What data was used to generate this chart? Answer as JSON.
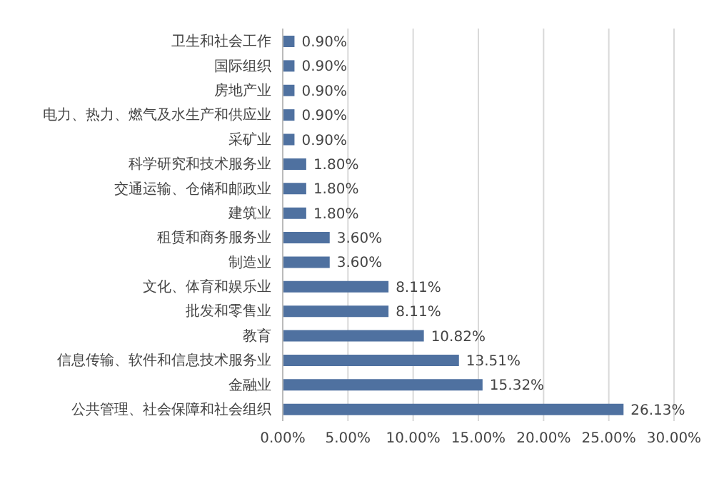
{
  "chart_data": {
    "type": "bar",
    "orientation": "horizontal",
    "categories": [
      "卫生和社会工作",
      "国际组织",
      "房地产业",
      "电力、热力、燃气及水生产和供应业",
      "采矿业",
      "科学研究和技术服务业",
      "交通运输、仓储和邮政业",
      "建筑业",
      "租赁和商务服务业",
      "制造业",
      "文化、体育和娱乐业",
      "批发和零售业",
      "教育",
      "信息传输、软件和信息技术服务业",
      "金融业",
      "公共管理、社会保障和社会组织"
    ],
    "values": [
      0.9,
      0.9,
      0.9,
      0.9,
      0.9,
      1.8,
      1.8,
      1.8,
      3.6,
      3.6,
      8.11,
      8.11,
      10.82,
      13.51,
      15.32,
      26.13
    ],
    "value_labels": [
      "0.90%",
      "0.90%",
      "0.90%",
      "0.90%",
      "0.90%",
      "1.80%",
      "1.80%",
      "1.80%",
      "3.60%",
      "3.60%",
      "8.11%",
      "8.11%",
      "10.82%",
      "13.51%",
      "15.32%",
      "26.13%"
    ],
    "color": "#4f71a0",
    "xlim": [
      0,
      30
    ],
    "xticks": [
      {
        "value": 0,
        "label": "0.00%"
      },
      {
        "value": 5,
        "label": "5.00%"
      },
      {
        "value": 10,
        "label": "10.00%"
      },
      {
        "value": 15,
        "label": "15.00%"
      },
      {
        "value": 20,
        "label": "20.00%"
      },
      {
        "value": 25,
        "label": "25.00%"
      },
      {
        "value": 30,
        "label": "30.00%"
      }
    ],
    "grid": "x"
  }
}
